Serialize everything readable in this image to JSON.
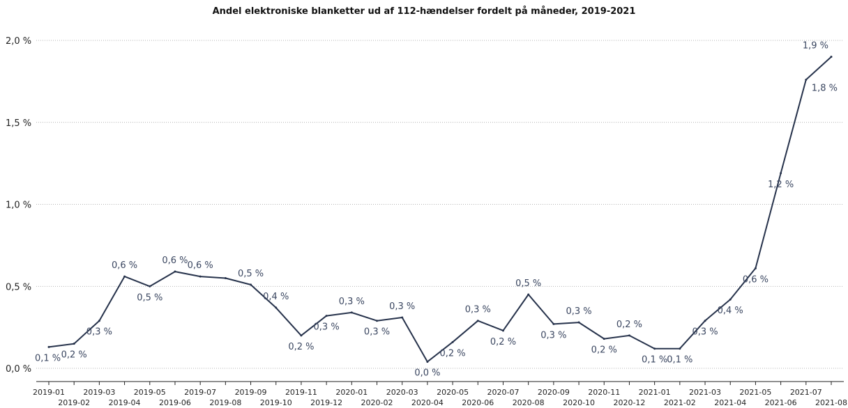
{
  "chart_data": {
    "type": "line",
    "title": "Andel elektroniske blanketter ud af 112-hændelser fordelt på måneder, 2019-2021",
    "xlabel": "",
    "ylabel": "",
    "ylim": [
      0,
      2.0
    ],
    "yticks": [
      0,
      0.5,
      1.0,
      1.5,
      2.0
    ],
    "ytick_labels": [
      "0,0 %",
      "0,5 %",
      "1,0 %",
      "1,5 %",
      "2,0 %"
    ],
    "grid": "horizontal dotted",
    "line_color": "#26324b",
    "categories": [
      "2019-01",
      "2019-02",
      "2019-03",
      "2019-04",
      "2019-05",
      "2019-06",
      "2019-07",
      "2019-08",
      "2019-09",
      "2019-10",
      "2019-11",
      "2019-12",
      "2020-01",
      "2020-02",
      "2020-03",
      "2020-04",
      "2020-05",
      "2020-06",
      "2020-07",
      "2020-08",
      "2020-09",
      "2020-10",
      "2020-11",
      "2020-12",
      "2021-01",
      "2021-02",
      "2021-03",
      "2021-04",
      "2021-05",
      "2021-06",
      "2021-07",
      "2021-08"
    ],
    "series": [
      {
        "values": [
          0.13,
          0.15,
          0.29,
          0.56,
          0.5,
          0.59,
          0.56,
          0.55,
          0.51,
          0.37,
          0.2,
          0.32,
          0.34,
          0.29,
          0.31,
          0.04,
          0.16,
          0.29,
          0.23,
          0.45,
          0.27,
          0.28,
          0.18,
          0.2,
          0.12,
          0.12,
          0.29,
          0.42,
          0.61,
          1.19,
          1.76,
          1.9
        ],
        "labels": [
          "0,1 %",
          "0,2 %",
          "0,3 %",
          "0,6 %",
          "0,5 %",
          "0,6 %",
          "0,6 %",
          "",
          "0,5 %",
          "0,4 %",
          "0,2 %",
          "0,3 %",
          "0,3 %",
          "0,3 %",
          "0,3 %",
          "0,0 %",
          "0,2 %",
          "0,3 %",
          "0,2 %",
          "0,5 %",
          "0,3 %",
          "0,3 %",
          "0,2 %",
          "0,2 %",
          "0,1 %",
          "0,1 %",
          "0,3 %",
          "0,4 %",
          "0,6 %",
          "1,2 %",
          "1,8 %",
          "1,9 %"
        ]
      }
    ]
  }
}
